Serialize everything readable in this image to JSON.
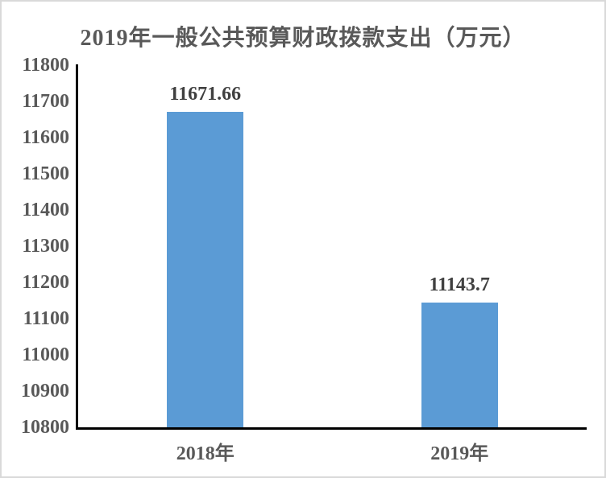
{
  "chart_data": {
    "type": "bar",
    "title": "2019年一般公共预算财政拨款支出（万元）",
    "categories": [
      "2018年",
      "2019年"
    ],
    "values": [
      11671.66,
      11143.7
    ],
    "data_labels": [
      "11671.66",
      "11143.7"
    ],
    "ylim": [
      10800,
      11800
    ],
    "ytick_step": 100,
    "ytick_labels": [
      "11800",
      "11700",
      "11600",
      "11500",
      "11400",
      "11300",
      "11200",
      "11100",
      "11000",
      "10900",
      "10800"
    ],
    "grid": false,
    "legend": "none",
    "bar_color": "#5B9BD5",
    "axis_line_color": "#000000",
    "tick_label_color": "#595959",
    "title_color": "#595959",
    "value_label_color": "#404040",
    "background_color": "#FFFFFF",
    "frame_border_color": "#D9D9D9"
  }
}
